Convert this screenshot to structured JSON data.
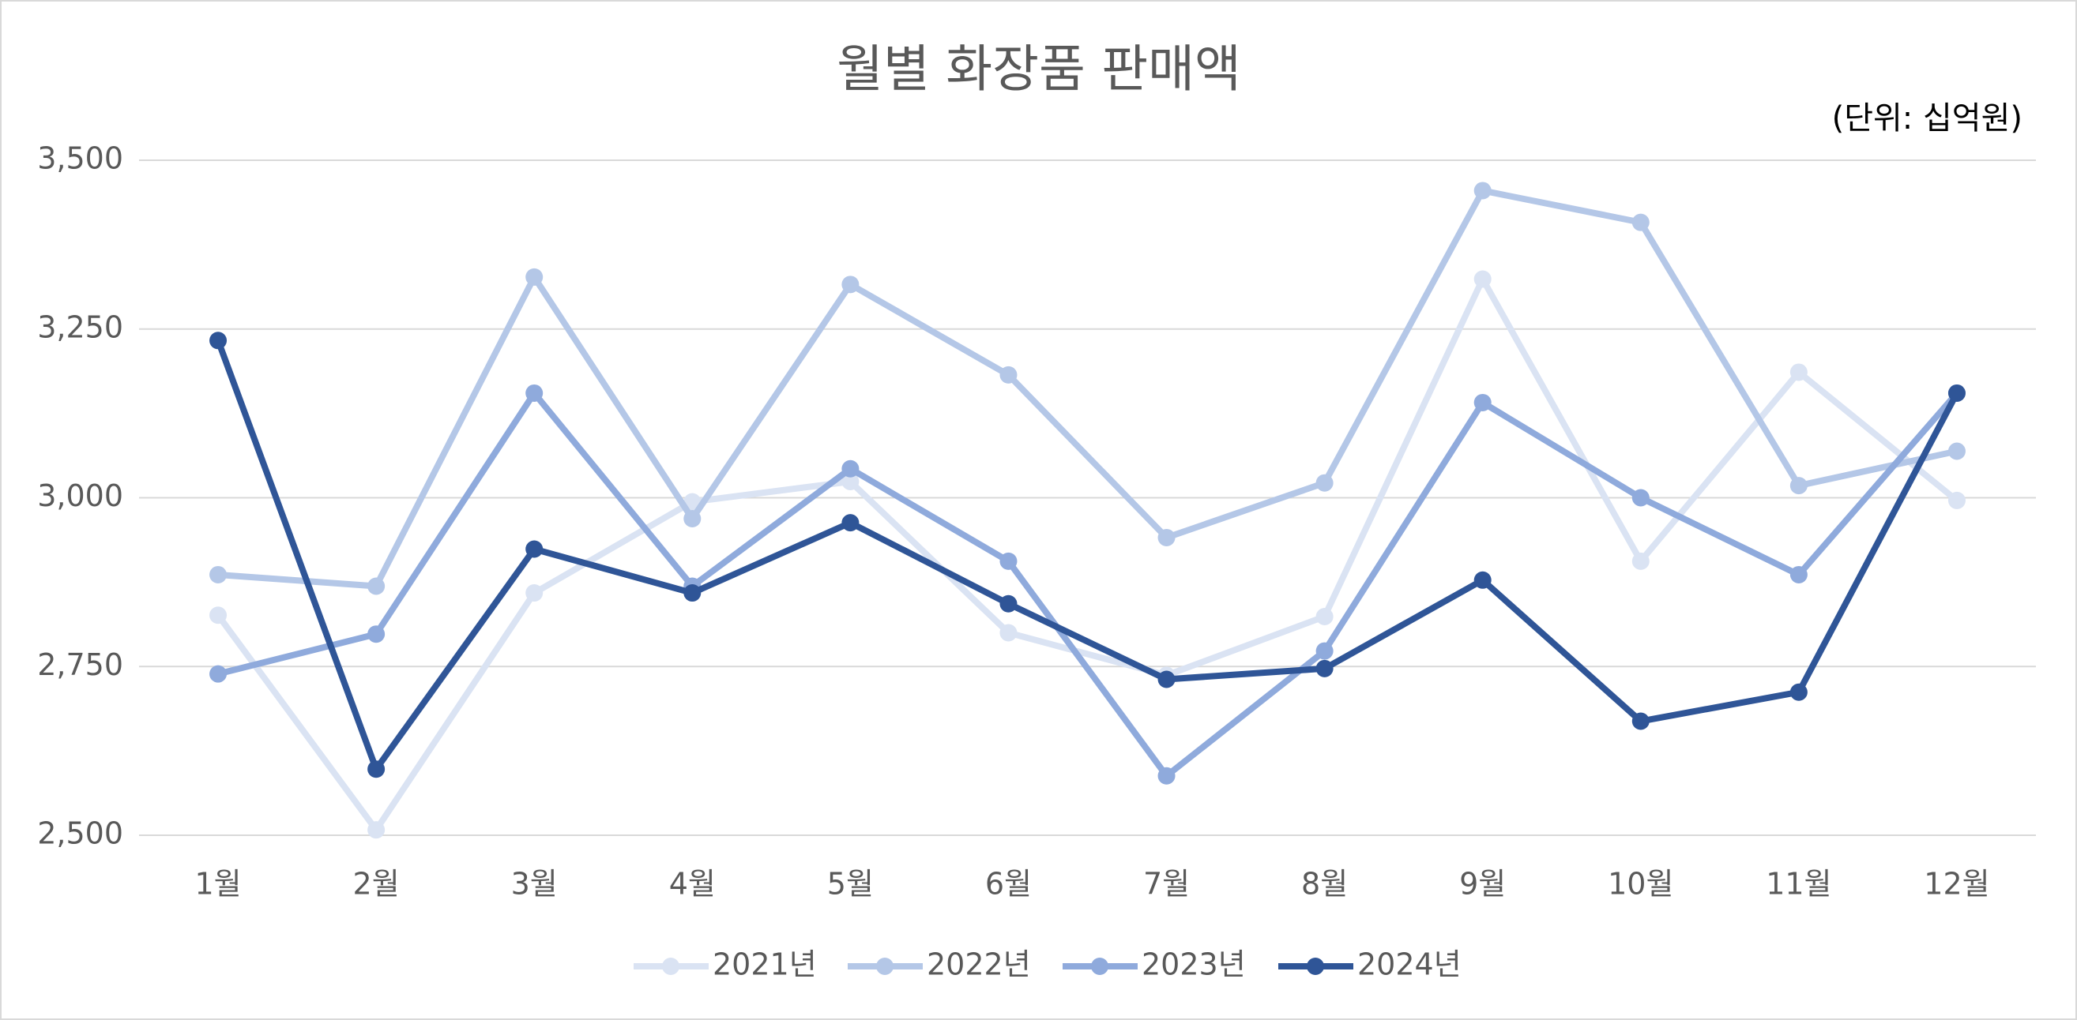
{
  "chart_data": {
    "type": "line",
    "title": "월별 화장품 판매액",
    "unit_label": "(단위: 십억원)",
    "categories": [
      "1월",
      "2월",
      "3월",
      "4월",
      "5월",
      "6월",
      "7월",
      "8월",
      "9월",
      "10월",
      "11월",
      "12월"
    ],
    "series": [
      {
        "name": "2021년",
        "color": "#dae3f3",
        "values": [
          2826,
          2508,
          2859,
          2994,
          3024,
          2800,
          2737,
          2824,
          3324,
          2906,
          3186,
          2996
        ]
      },
      {
        "name": "2022년",
        "color": "#b4c7e7",
        "values": [
          2886,
          2869,
          3327,
          2969,
          3316,
          3182,
          2941,
          3022,
          3455,
          3408,
          3018,
          3069
        ]
      },
      {
        "name": "2023년",
        "color": "#8faadc",
        "values": [
          2739,
          2798,
          3155,
          2869,
          3043,
          2906,
          2588,
          2773,
          3141,
          3000,
          2886,
          3155
        ]
      },
      {
        "name": "2024년",
        "color": "#2f5597",
        "values": [
          3233,
          2598,
          2924,
          2859,
          2963,
          2843,
          2731,
          2747,
          2878,
          2669,
          2712,
          3155
        ]
      }
    ],
    "ylim": [
      2500,
      3500
    ],
    "yticks": [
      {
        "value": 2500,
        "label": "2,500"
      },
      {
        "value": 2750,
        "label": "2,750"
      },
      {
        "value": 3000,
        "label": "3,000"
      },
      {
        "value": 3250,
        "label": "3,250"
      },
      {
        "value": 3500,
        "label": "3,500"
      }
    ],
    "grid": true,
    "legend": "bottom"
  }
}
